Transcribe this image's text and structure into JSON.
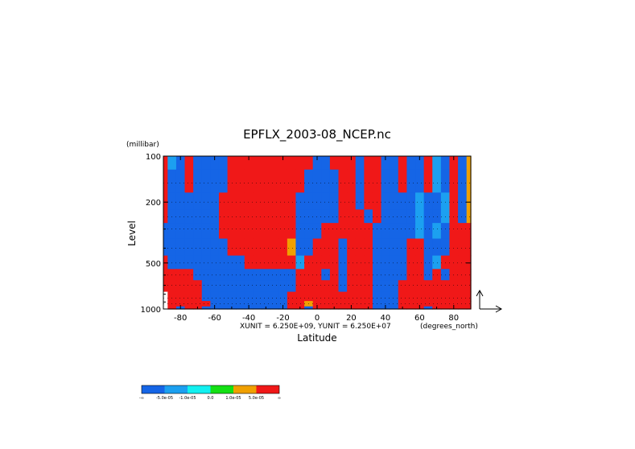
{
  "chart_data": {
    "type": "heatmap",
    "title": "EPFLX_2003-08_NCEP.nc",
    "xlabel": "Latitude",
    "x_units": "(degrees_north)",
    "ylabel": "Level",
    "y_units": "(millibar)",
    "y_scale": "log",
    "xlim": [
      -90,
      90
    ],
    "ylim": [
      1000,
      100
    ],
    "x_ticks": [
      -80,
      -60,
      -40,
      -20,
      0,
      20,
      40,
      60,
      80
    ],
    "x_tick_labels": [
      "-80",
      "-60",
      "-40",
      "-20",
      "0",
      "20",
      "40",
      "60",
      "80"
    ],
    "y_ticks": [
      100,
      200,
      500,
      1000
    ],
    "y_tick_labels": [
      "100",
      "200",
      "500",
      "1000"
    ],
    "grid": true,
    "vector_scale_text": "XUNIT = 6.250E+09, YUNIT = 6.250E+07",
    "colorbar": {
      "colors": [
        "#1565e6",
        "#1ca0f0",
        "#12f0f0",
        "#14e014",
        "#f0a000",
        "#f01818"
      ],
      "labels": [
        "-∞",
        "-5.0e-05",
        "-1.0e-05",
        "0.0",
        "1.0e-05",
        "5.0e-05",
        "∞"
      ]
    },
    "shading": {
      "lats": [
        -90,
        -85,
        -80,
        -75,
        -70,
        -65,
        -60,
        -55,
        -50,
        -45,
        -40,
        -35,
        -30,
        -25,
        -20,
        -15,
        -10,
        -5,
        0,
        5,
        10,
        15,
        20,
        25,
        30,
        35,
        40,
        45,
        50,
        55,
        60,
        65,
        70,
        75,
        80,
        85,
        90
      ],
      "levels": [
        100,
        150,
        200,
        250,
        300,
        400,
        500,
        600,
        700,
        850,
        925,
        1000
      ],
      "classes": [
        [
          6,
          2,
          0,
          6,
          0,
          0,
          0,
          0,
          6,
          6,
          6,
          6,
          6,
          6,
          6,
          6,
          6,
          6,
          0,
          0,
          6,
          6,
          6,
          0,
          6,
          6,
          0,
          0,
          6,
          0,
          0,
          6,
          2,
          0,
          6,
          0,
          5
        ],
        [
          6,
          0,
          0,
          6,
          0,
          0,
          0,
          0,
          6,
          6,
          6,
          6,
          6,
          6,
          6,
          6,
          6,
          0,
          0,
          0,
          0,
          6,
          6,
          0,
          6,
          6,
          0,
          0,
          6,
          0,
          0,
          6,
          2,
          0,
          6,
          0,
          5
        ],
        [
          6,
          0,
          0,
          0,
          0,
          0,
          0,
          6,
          6,
          6,
          6,
          6,
          6,
          6,
          6,
          6,
          0,
          0,
          0,
          0,
          0,
          6,
          6,
          0,
          6,
          6,
          0,
          0,
          0,
          0,
          2,
          0,
          0,
          2,
          6,
          0,
          5
        ],
        [
          6,
          0,
          0,
          0,
          0,
          0,
          0,
          6,
          6,
          6,
          6,
          6,
          6,
          6,
          6,
          6,
          0,
          0,
          0,
          0,
          0,
          6,
          6,
          6,
          0,
          6,
          0,
          0,
          0,
          0,
          2,
          0,
          0,
          2,
          6,
          0,
          5
        ],
        [
          0,
          0,
          0,
          0,
          0,
          0,
          0,
          6,
          6,
          6,
          6,
          6,
          6,
          6,
          6,
          6,
          0,
          0,
          0,
          6,
          6,
          6,
          6,
          6,
          6,
          0,
          0,
          0,
          0,
          0,
          2,
          0,
          2,
          0,
          6,
          6,
          6
        ],
        [
          0,
          0,
          0,
          0,
          0,
          0,
          0,
          0,
          6,
          6,
          6,
          6,
          6,
          6,
          6,
          5,
          0,
          0,
          6,
          6,
          6,
          0,
          6,
          6,
          6,
          0,
          0,
          0,
          0,
          6,
          6,
          0,
          0,
          0,
          6,
          6,
          6
        ],
        [
          6,
          0,
          0,
          0,
          0,
          0,
          0,
          0,
          0,
          0,
          6,
          6,
          6,
          6,
          6,
          6,
          2,
          6,
          6,
          6,
          6,
          0,
          6,
          6,
          6,
          0,
          0,
          0,
          0,
          6,
          6,
          0,
          2,
          6,
          6,
          6,
          6
        ],
        [
          6,
          6,
          6,
          6,
          0,
          0,
          0,
          0,
          0,
          0,
          0,
          0,
          0,
          0,
          0,
          0,
          6,
          6,
          6,
          0,
          6,
          0,
          6,
          6,
          6,
          0,
          0,
          0,
          0,
          6,
          6,
          0,
          6,
          0,
          6,
          6,
          6
        ],
        [
          6,
          6,
          6,
          6,
          6,
          0,
          0,
          0,
          0,
          0,
          0,
          0,
          0,
          0,
          0,
          0,
          6,
          6,
          6,
          6,
          6,
          0,
          6,
          6,
          6,
          0,
          0,
          0,
          6,
          6,
          6,
          6,
          6,
          6,
          6,
          6,
          6
        ],
        [
          -1,
          6,
          6,
          6,
          6,
          0,
          0,
          0,
          0,
          0,
          0,
          0,
          0,
          0,
          0,
          6,
          6,
          6,
          6,
          6,
          6,
          6,
          6,
          6,
          6,
          0,
          0,
          0,
          6,
          6,
          6,
          6,
          6,
          6,
          6,
          6,
          6
        ],
        [
          -1,
          6,
          6,
          6,
          6,
          6,
          0,
          0,
          0,
          0,
          0,
          0,
          0,
          0,
          0,
          6,
          6,
          5,
          6,
          6,
          6,
          6,
          6,
          6,
          6,
          0,
          0,
          0,
          6,
          6,
          6,
          6,
          6,
          6,
          6,
          6,
          6
        ],
        [
          -1,
          6,
          0,
          6,
          6,
          0,
          0,
          0,
          0,
          0,
          0,
          0,
          0,
          0,
          0,
          6,
          6,
          0,
          6,
          6,
          6,
          6,
          6,
          6,
          6,
          0,
          0,
          0,
          6,
          6,
          6,
          0,
          6,
          6,
          6,
          6,
          6
        ]
      ]
    }
  }
}
